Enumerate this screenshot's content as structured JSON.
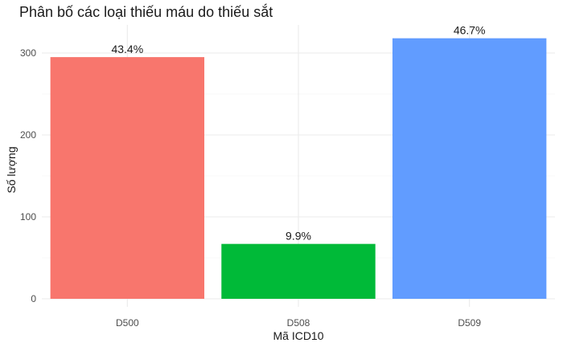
{
  "chart_data": {
    "type": "bar",
    "title": "Phân bố các loại thiếu máu do thiếu sắt",
    "xlabel": "Mã ICD10",
    "ylabel": "Số lượng",
    "categories": [
      "D500",
      "D508",
      "D509"
    ],
    "values": [
      295,
      67,
      318
    ],
    "data_labels": [
      "43.4%",
      "9.9%",
      "46.7%"
    ],
    "colors": [
      "#F8766D",
      "#00BA38",
      "#619CFF"
    ],
    "yticks": [
      0,
      100,
      200,
      300
    ],
    "ylim": [
      0,
      318
    ],
    "grid": true,
    "legend": "none"
  }
}
